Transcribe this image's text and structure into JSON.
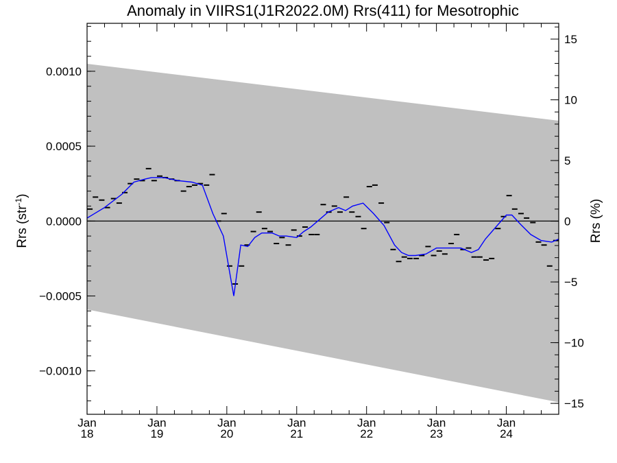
{
  "chart_data": {
    "type": "line",
    "title": "Anomaly in VIIRS1(J1R2022.0M) Rrs(411) for Mesotrophic",
    "ylabel_left": {
      "base": "Rrs (str",
      "sup": "-1",
      "close": ")"
    },
    "ylabel_right": "Rrs (%)",
    "xlim": [
      2018.0,
      2024.75
    ],
    "ylim": [
      -0.00129,
      0.00132
    ],
    "ylim_right": [
      -15.9,
      16.3
    ],
    "grid": false,
    "xticks": [
      {
        "x": 2018.0,
        "month": "Jan",
        "year": "18"
      },
      {
        "x": 2019.0,
        "month": "Jan",
        "year": "19"
      },
      {
        "x": 2020.0,
        "month": "Jan",
        "year": "20"
      },
      {
        "x": 2021.0,
        "month": "Jan",
        "year": "21"
      },
      {
        "x": 2022.0,
        "month": "Jan",
        "year": "22"
      },
      {
        "x": 2023.0,
        "month": "Jan",
        "year": "23"
      },
      {
        "x": 2024.0,
        "month": "Jan",
        "year": "24"
      }
    ],
    "yticks_left": [
      {
        "v": 0.001,
        "label": "0.0010"
      },
      {
        "v": 0.0005,
        "label": "0.0005"
      },
      {
        "v": 0.0,
        "label": "0.0000"
      },
      {
        "v": -0.0005,
        "label": "−0.0005"
      },
      {
        "v": -0.001,
        "label": "−0.0010"
      }
    ],
    "yticks_right": [
      {
        "v": 15,
        "label": "15"
      },
      {
        "v": 10,
        "label": "10"
      },
      {
        "v": 5,
        "label": "5"
      },
      {
        "v": 0,
        "label": "0"
      },
      {
        "v": -5,
        "label": "−5"
      },
      {
        "v": -10,
        "label": "−10"
      },
      {
        "v": -15,
        "label": "−15"
      }
    ],
    "band": {
      "color": "#c0c0c0",
      "upper": [
        [
          2018.0,
          0.00105
        ],
        [
          2024.75,
          0.00067
        ]
      ],
      "lower": [
        [
          2018.0,
          -0.00059
        ],
        [
          2024.75,
          -0.00121
        ]
      ]
    },
    "zero_line": {
      "y": 0.0,
      "color": "#000000"
    },
    "series": [
      {
        "kind": "monthly",
        "color": "#000000",
        "x": [
          2018.04,
          2018.12,
          2018.21,
          2018.29,
          2018.38,
          2018.46,
          2018.54,
          2018.62,
          2018.71,
          2018.79,
          2018.88,
          2018.96,
          2019.04,
          2019.12,
          2019.21,
          2019.29,
          2019.38,
          2019.46,
          2019.54,
          2019.62,
          2019.71,
          2019.79,
          2019.88,
          2019.96,
          2020.04,
          2020.12,
          2020.21,
          2020.29,
          2020.38,
          2020.46,
          2020.54,
          2020.62,
          2020.71,
          2020.79,
          2020.88,
          2020.96,
          2021.04,
          2021.12,
          2021.21,
          2021.29,
          2021.38,
          2021.46,
          2021.54,
          2021.62,
          2021.71,
          2021.79,
          2021.88,
          2021.96,
          2022.04,
          2022.12,
          2022.21,
          2022.29,
          2022.38,
          2022.46,
          2022.54,
          2022.62,
          2022.71,
          2022.79,
          2022.88,
          2022.96,
          2023.04,
          2023.12,
          2023.21,
          2023.29,
          2023.38,
          2023.46,
          2023.54,
          2023.62,
          2023.71,
          2023.79,
          2023.88,
          2023.96,
          2024.04,
          2024.12,
          2024.21,
          2024.29,
          2024.38,
          2024.46,
          2024.54,
          2024.62,
          2024.71
        ],
        "y": [
          8e-05,
          0.00016,
          0.00014,
          9e-05,
          0.00015,
          0.00012,
          0.00019,
          0.00025,
          0.00028,
          0.00027,
          0.00035,
          0.00027,
          0.0003,
          0.00029,
          0.00028,
          0.00027,
          0.0002,
          0.00023,
          0.00024,
          0.00025,
          0.00024,
          0.00031,
          0.0,
          5e-05,
          -0.0003,
          -0.00042,
          -0.0003,
          -0.00016,
          -7e-05,
          6e-05,
          -5e-05,
          -7e-05,
          -0.00015,
          -0.00011,
          -0.00016,
          -6e-05,
          -0.0001,
          -4e-05,
          -9e-05,
          -9e-05,
          0.00011,
          6e-05,
          0.0001,
          6e-05,
          0.00016,
          6e-05,
          3e-05,
          -5e-05,
          0.00023,
          0.00024,
          0.00012,
          -1e-05,
          -0.00019,
          -0.00027,
          -0.00024,
          -0.00025,
          -0.00025,
          -0.00023,
          -0.00017,
          -0.00023,
          -0.0002,
          -0.00022,
          -0.00015,
          -9e-05,
          -0.00019,
          -0.00018,
          -0.00024,
          -0.00024,
          -0.00026,
          -0.00025,
          -5e-05,
          3e-05,
          0.00017,
          8e-05,
          5e-05,
          2e-05,
          -1e-05,
          -0.00014,
          -0.00016,
          -0.0003,
          -0.00013
        ]
      },
      {
        "kind": "smoothed",
        "color": "#0000ff",
        "x": [
          2018.0,
          2018.25,
          2018.5,
          2018.67,
          2018.83,
          2018.92,
          2019.1,
          2019.3,
          2019.5,
          2019.65,
          2019.8,
          2019.95,
          2020.1,
          2020.2,
          2020.3,
          2020.4,
          2020.5,
          2020.65,
          2020.75,
          2020.85,
          2021.0,
          2021.1,
          2021.2,
          2021.3,
          2021.45,
          2021.6,
          2021.7,
          2021.8,
          2021.95,
          2022.1,
          2022.25,
          2022.4,
          2022.5,
          2022.6,
          2022.7,
          2022.85,
          2023.0,
          2023.2,
          2023.35,
          2023.5,
          2023.6,
          2023.7,
          2023.85,
          2024.0,
          2024.08,
          2024.2,
          2024.35,
          2024.5,
          2024.65,
          2024.75
        ],
        "y": [
          2e-05,
          9e-05,
          0.00018,
          0.00026,
          0.00028,
          0.00029,
          0.00029,
          0.00027,
          0.00026,
          0.00024,
          5e-05,
          -0.0001,
          -0.0005,
          -0.00016,
          -0.00017,
          -0.00011,
          -8e-05,
          -8e-05,
          -0.0001,
          -0.0001,
          -0.00011,
          -7e-05,
          -4e-05,
          0.0,
          6e-05,
          9e-05,
          7e-05,
          0.0001,
          0.00012,
          5e-05,
          -3e-05,
          -0.00016,
          -0.00021,
          -0.00023,
          -0.00023,
          -0.00022,
          -0.00018,
          -0.00018,
          -0.00018,
          -0.00021,
          -0.00019,
          -0.00012,
          -4e-05,
          4e-05,
          4e-05,
          -2e-05,
          -9e-05,
          -0.00013,
          -0.00014,
          -0.00012
        ]
      }
    ]
  }
}
